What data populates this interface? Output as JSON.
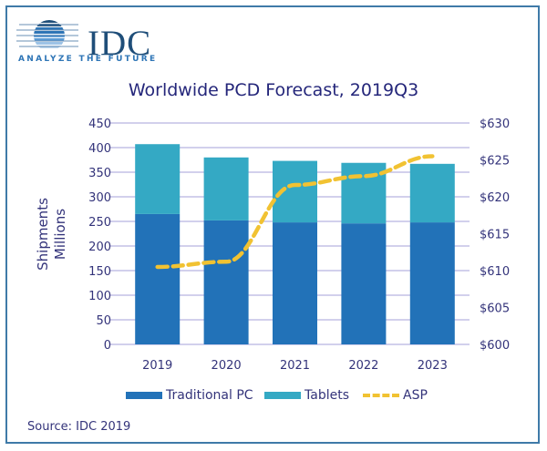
{
  "logo": {
    "name": "IDC",
    "tagline": "ANALYZE THE FUTURE"
  },
  "source": "Source: IDC 2019",
  "colors": {
    "traditional_pc": "#2272b8",
    "tablets": "#34a9c4",
    "asp": "#f1c232",
    "grid": "#b7b3e0",
    "text": "#33337a",
    "frame": "#3f7aa8"
  },
  "chart_data": {
    "type": "bar",
    "stacked": true,
    "title": "Worldwide PCD Forecast, 2019Q3",
    "xlabel": "",
    "ylabel": "Shipments Millions",
    "ylabel_lines": [
      "Shipments",
      "Millions"
    ],
    "categories": [
      "2019",
      "2020",
      "2021",
      "2022",
      "2023"
    ],
    "ylim": [
      0,
      450
    ],
    "yticks": [
      0,
      50,
      100,
      150,
      200,
      250,
      300,
      350,
      400,
      450
    ],
    "y2lim": [
      600,
      630
    ],
    "y2ticks": [
      "$600",
      "$605",
      "$610",
      "$615",
      "$620",
      "$625",
      "$630"
    ],
    "y2tick_values": [
      600,
      605,
      610,
      615,
      620,
      625,
      630
    ],
    "grid": true,
    "legend_position": "bottom",
    "series": [
      {
        "name": "Traditional PC",
        "type": "bar",
        "axis": "left",
        "values": [
          265,
          252,
          248,
          246,
          248
        ]
      },
      {
        "name": "Tablets",
        "type": "bar",
        "axis": "left",
        "values": [
          142,
          128,
          125,
          123,
          119
        ]
      },
      {
        "name": "ASP",
        "type": "line",
        "axis": "right",
        "style": "dashed",
        "values": [
          610.5,
          611.2,
          621.6,
          622.8,
          625.5
        ]
      }
    ]
  }
}
